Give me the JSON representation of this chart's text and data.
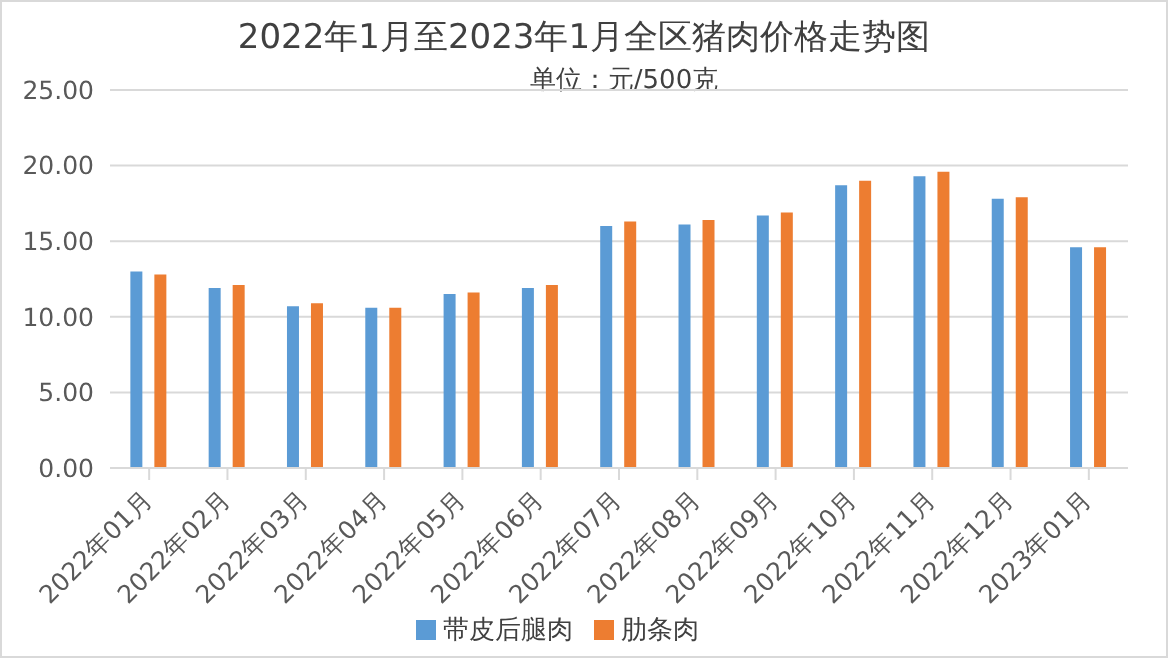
{
  "chart_data": {
    "type": "bar",
    "title": "2022年1月至2023年1月全区猪肉价格走势图",
    "subtitle": "单位：元/500克",
    "categories": [
      "2022年01月",
      "2022年02月",
      "2022年03月",
      "2022年04月",
      "2022年05月",
      "2022年06月",
      "2022年07月",
      "2022年08月",
      "2022年09月",
      "2022年10月",
      "2022年11月",
      "2022年12月",
      "2023年01月"
    ],
    "series": [
      {
        "name": "带皮后腿肉",
        "color": "#5b9bd5",
        "values": [
          13.0,
          11.9,
          10.7,
          10.6,
          11.5,
          11.9,
          16.0,
          16.1,
          16.7,
          18.7,
          19.3,
          17.8,
          14.6
        ]
      },
      {
        "name": "肋条肉",
        "color": "#ed7d31",
        "values": [
          12.8,
          12.1,
          10.9,
          10.6,
          11.6,
          12.1,
          16.3,
          16.4,
          16.9,
          19.0,
          19.6,
          17.9,
          14.6
        ]
      }
    ],
    "ylim": [
      0,
      25
    ],
    "yticks": [
      {
        "value": 0,
        "label": "0.00"
      },
      {
        "value": 5,
        "label": "5.00"
      },
      {
        "value": 10,
        "label": "10.00"
      },
      {
        "value": 15,
        "label": "15.00"
      },
      {
        "value": 20,
        "label": "20.00"
      },
      {
        "value": 25,
        "label": "25.00"
      }
    ],
    "grid": "y",
    "legend": "bottom"
  }
}
